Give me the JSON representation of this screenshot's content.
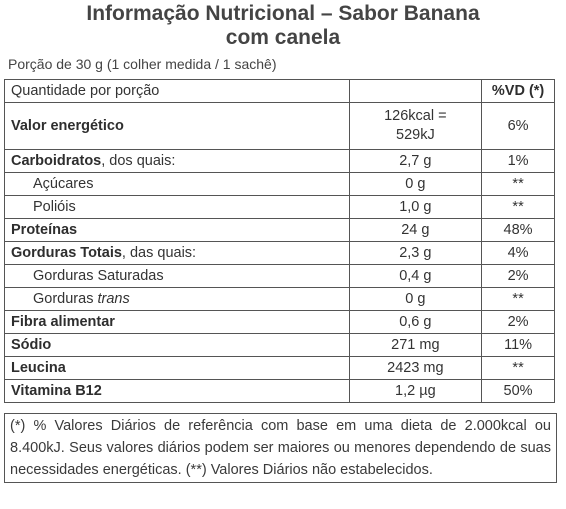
{
  "title_line1": "Informação Nutricional – Sabor Banana",
  "title_line2": "com canela",
  "serving": "Porção de 30 g (1 colher medida / 1 sachê)",
  "header": {
    "qty": "Quantidade por porção",
    "vd": "%VD (*)"
  },
  "energy": {
    "label": "Valor energético",
    "value1": "126kcal =",
    "value2": "529kJ",
    "vd": "6%"
  },
  "rows": {
    "carb": {
      "label_bold": "Carboidratos",
      "label_rest": ", dos quais:",
      "value": "2,7 g",
      "vd": "1%"
    },
    "sugar": {
      "label": "Açúcares",
      "value": "0 g",
      "vd": "**"
    },
    "polyol": {
      "label": "Polióis",
      "value": "1,0 g",
      "vd": "**"
    },
    "protein": {
      "label": "Proteínas",
      "value": "24 g",
      "vd": "48%"
    },
    "fat": {
      "label_bold": "Gorduras Totais",
      "label_rest": ", das quais:",
      "value": "2,3 g",
      "vd": "4%"
    },
    "satfat": {
      "label": "Gorduras Saturadas",
      "value": "0,4 g",
      "vd": "2%"
    },
    "transfat": {
      "label": "Gorduras ",
      "label_italic": "trans",
      "value": "0 g",
      "vd": "**"
    },
    "fiber": {
      "label": "Fibra alimentar",
      "value": "0,6 g",
      "vd": "2%"
    },
    "sodium": {
      "label": "Sódio",
      "value": "271 mg",
      "vd": "11%"
    },
    "leucine": {
      "label": "Leucina",
      "value": "2423 mg",
      "vd": "**"
    },
    "b12": {
      "label": "Vitamina B12",
      "value": "1,2 µg",
      "vd": "50%"
    }
  },
  "footnote": "(*) % Valores Diários de referência com base em uma dieta de 2.000kcal ou 8.400kJ. Seus valores diários podem ser maiores ou menores dependendo de suas necessidades energéticas. (**) Valores Diários não estabelecidos."
}
